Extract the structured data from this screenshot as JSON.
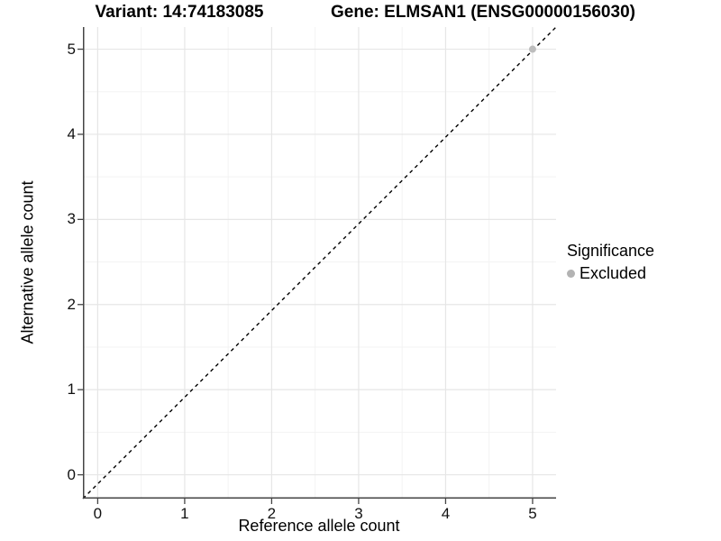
{
  "chart_data": {
    "type": "scatter",
    "title_left": "Variant: 14:74183085",
    "title_right": "Gene: ELMSAN1 (ENSG00000156030)",
    "xlabel": "Reference allele count",
    "ylabel": "Alternative allele count",
    "x_ticks": [
      0,
      1,
      2,
      3,
      4,
      5
    ],
    "y_ticks": [
      0,
      1,
      2,
      3,
      4,
      5
    ],
    "minor_ticks_x": [
      0.5,
      1.5,
      2.5,
      3.5,
      4.5
    ],
    "minor_ticks_y": [
      0.5,
      1.5,
      2.5,
      3.5,
      4.5
    ],
    "xlim": [
      -0.17,
      5.27
    ],
    "ylim": [
      -0.28,
      5.26
    ],
    "grid": true,
    "series": [
      {
        "name": "Excluded",
        "marker": "circle",
        "color": "#bdbdbd",
        "point_radius": 4,
        "points": [
          [
            5,
            5
          ]
        ]
      }
    ],
    "reference_line": {
      "type": "identity",
      "style": "dashed",
      "color": "#000000",
      "from": [
        0,
        0
      ],
      "to": [
        5.26,
        5.26
      ]
    },
    "legend": {
      "title": "Significance",
      "position": "right",
      "items": [
        {
          "label": "Excluded",
          "color": "#b3b3b3",
          "marker": "circle"
        }
      ]
    },
    "colors": {
      "panel_bg": "#ffffff",
      "grid_major": "#e6e6e6",
      "grid_minor": "#f3f3f3",
      "axis_line": "#444444",
      "tick_mark": "#444444",
      "text": "#000000"
    }
  }
}
